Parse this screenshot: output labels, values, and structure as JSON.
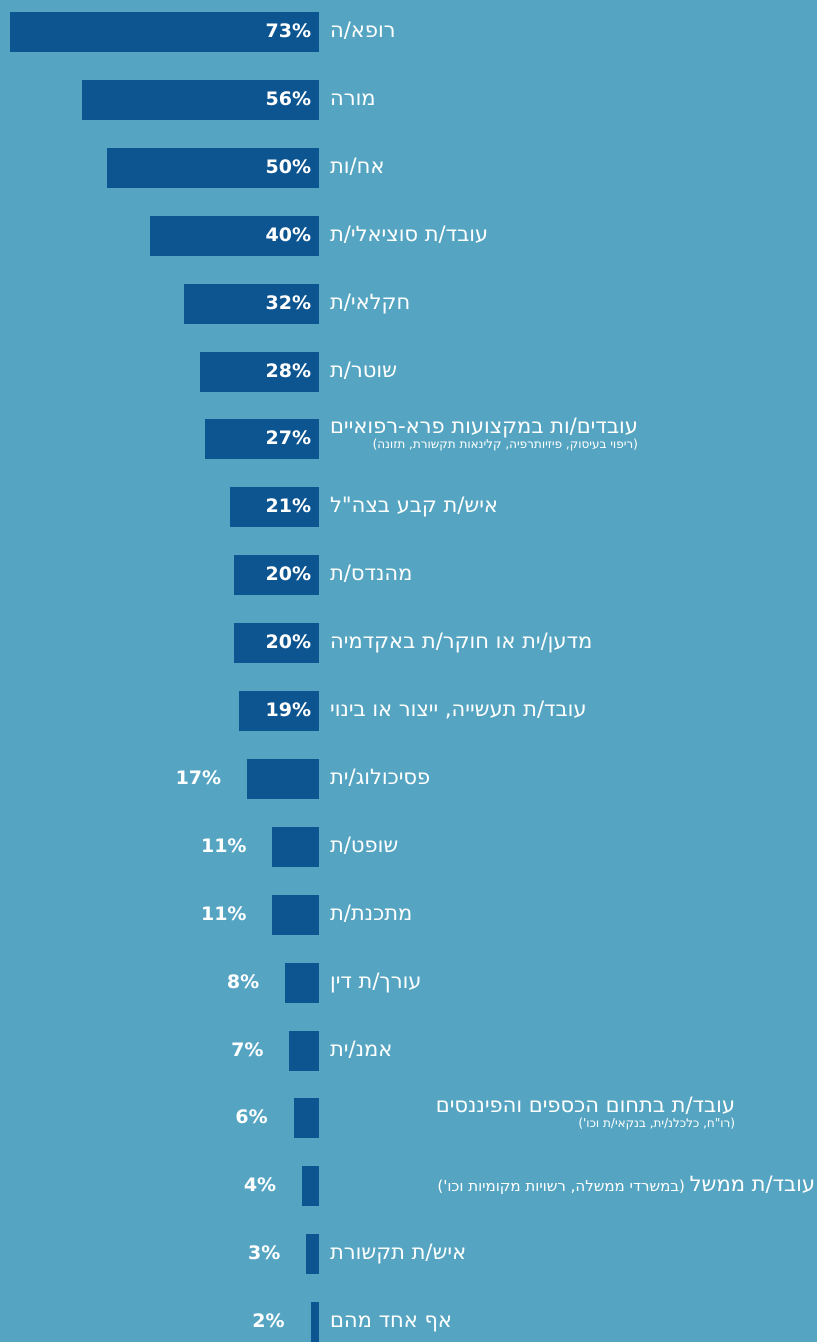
{
  "chart_data": {
    "type": "bar",
    "orientation": "horizontal",
    "grid": false,
    "xlim": [
      0,
      73
    ],
    "colors": {
      "background": "#55a5c2",
      "bar": "#0d5590",
      "text": "#ffffff"
    },
    "categories": [
      {
        "label": "רופא/ה",
        "value": 73,
        "value_label": "73%"
      },
      {
        "label": "מורה",
        "value": 56,
        "value_label": "56%"
      },
      {
        "label": "אח/ות",
        "value": 50,
        "value_label": "50%"
      },
      {
        "label": "עובד/ת סוציאלי/ת",
        "value": 40,
        "value_label": "40%"
      },
      {
        "label": "חקלאי/ת",
        "value": 32,
        "value_label": "32%"
      },
      {
        "label": "שוטר/ת",
        "value": 28,
        "value_label": "28%"
      },
      {
        "label": "עובדים/ות במקצועות פרא-רפואיים",
        "sublabel": "(ריפוי בעיסוק, פיזיותרפיה, קלינאות תקשורת, תזונה)",
        "value": 27,
        "value_label": "27%"
      },
      {
        "label": "איש/ת קבע בצה\"ל",
        "value": 21,
        "value_label": "21%"
      },
      {
        "label": "מהנדס/ת",
        "value": 20,
        "value_label": "20%"
      },
      {
        "label": "מדען/ית או חוקר/ת באקדמיה",
        "value": 20,
        "value_label": "20%"
      },
      {
        "label": "עובד/ת תעשייה, ייצור או בינוי",
        "value": 19,
        "value_label": "19%"
      },
      {
        "label": "פסיכולוג/ית",
        "value": 17,
        "value_label": "17%"
      },
      {
        "label": "שופט/ת",
        "value": 11,
        "value_label": "11%"
      },
      {
        "label": "מתכנת/ת",
        "value": 11,
        "value_label": "11%"
      },
      {
        "label": "עורך/ת דין",
        "value": 8,
        "value_label": "8%"
      },
      {
        "label": "אמנ/ית",
        "value": 7,
        "value_label": "7%"
      },
      {
        "label": "עובד/ת בתחום הכספים והפיננסים",
        "sublabel": "(רו\"ח, כלכלנ/ית, בנקאי/ת וכו')",
        "value": 6,
        "value_label": "6%"
      },
      {
        "label": "עובד/ת ממשל",
        "inline_sublabel": "(במשרדי ממשלה, רשויות מקומיות וכו')",
        "value": 4,
        "value_label": "4%"
      },
      {
        "label": "איש/ת תקשורת",
        "value": 3,
        "value_label": "3%"
      },
      {
        "label": "אף אחד מהם",
        "value": 2,
        "value_label": "2%"
      }
    ]
  }
}
